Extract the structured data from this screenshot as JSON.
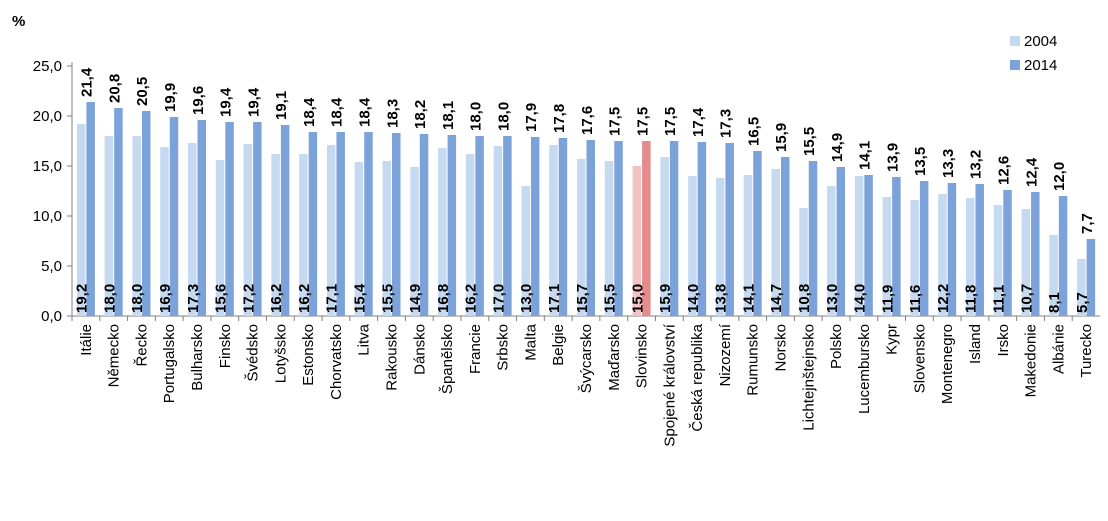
{
  "chart_data": {
    "type": "bar",
    "ylabel": "%",
    "ylim": [
      0,
      25
    ],
    "yticks": [
      "0,0",
      "5,0",
      "10,0",
      "15,0",
      "20,0",
      "25,0"
    ],
    "grid": false,
    "legend_position": "top-right",
    "colors": {
      "s2004": "#c5d9f1",
      "s2014": "#7ba3d9",
      "highlight_2004": "#f3c2c2",
      "highlight_2014": "#e48b8b",
      "axis": "#7f7f7f"
    },
    "highlight_index": 20,
    "categories": [
      "Itálie",
      "Německo",
      "Řecko",
      "Portugalsko",
      "Bulharsko",
      "Finsko",
      "Švédsko",
      "Lotyšsko",
      "Estonsko",
      "Chorvatsko",
      "Litva",
      "Rakousko",
      "Dánsko",
      "Španělsko",
      "Francie",
      "Srbsko",
      "Malta",
      "Belgie",
      "Švýcarsko",
      "Maďarsko",
      "Slovinsko",
      "Spojené království",
      "Česká republika",
      "Nizozemí",
      "Rumunsko",
      "Norsko",
      "Lichtejnštejnsko",
      "Polsko",
      "Lucembursko",
      "Kypr",
      "Slovensko",
      "Montenegro",
      "Island",
      "Irsko",
      "Makedonie",
      "Albánie",
      "Turecko"
    ],
    "series": [
      {
        "name": "2004",
        "values": [
          19.2,
          18.0,
          18.0,
          16.9,
          17.3,
          15.6,
          17.2,
          16.2,
          16.2,
          17.1,
          15.4,
          15.5,
          14.9,
          16.8,
          16.2,
          17.0,
          13.0,
          17.1,
          15.7,
          15.5,
          15.0,
          15.9,
          14.0,
          13.8,
          14.1,
          14.7,
          10.8,
          13.0,
          14.0,
          11.9,
          11.6,
          12.2,
          11.8,
          11.1,
          10.7,
          8.1,
          5.7
        ],
        "labels": [
          "19,2",
          "18,0",
          "18,0",
          "16,9",
          "17,3",
          "15,6",
          "17,2",
          "16,2",
          "16,2",
          "17,1",
          "15,4",
          "15,5",
          "14,9",
          "16,8",
          "16,2",
          "17,0",
          "13,0",
          "17,1",
          "15,7",
          "15,5",
          "15,0",
          "15,9",
          "14,0",
          "13,8",
          "14,1",
          "14,7",
          "10,8",
          "13,0",
          "14,0",
          "11,9",
          "11,6",
          "12,2",
          "11,8",
          "11,1",
          "10,7",
          "8,1",
          "5,7"
        ]
      },
      {
        "name": "2014",
        "values": [
          21.4,
          20.8,
          20.5,
          19.9,
          19.6,
          19.4,
          19.4,
          19.1,
          18.4,
          18.4,
          18.4,
          18.3,
          18.2,
          18.1,
          18.0,
          18.0,
          17.9,
          17.8,
          17.6,
          17.5,
          17.5,
          17.5,
          17.4,
          17.3,
          16.5,
          15.9,
          15.5,
          14.9,
          14.1,
          13.9,
          13.5,
          13.3,
          13.2,
          12.6,
          12.4,
          12.0,
          7.7
        ],
        "labels": [
          "21,4",
          "20,8",
          "20,5",
          "19,9",
          "19,6",
          "19,4",
          "19,4",
          "19,1",
          "18,4",
          "18,4",
          "18,4",
          "18,3",
          "18,2",
          "18,1",
          "18,0",
          "18,0",
          "17,9",
          "17,8",
          "17,6",
          "17,5",
          "17,5",
          "17,5",
          "17,4",
          "17,3",
          "16,5",
          "15,9",
          "15,5",
          "14,9",
          "14,1",
          "13,9",
          "13,5",
          "13,3",
          "13,2",
          "12,6",
          "12,4",
          "12,0",
          "7,7"
        ]
      }
    ]
  }
}
